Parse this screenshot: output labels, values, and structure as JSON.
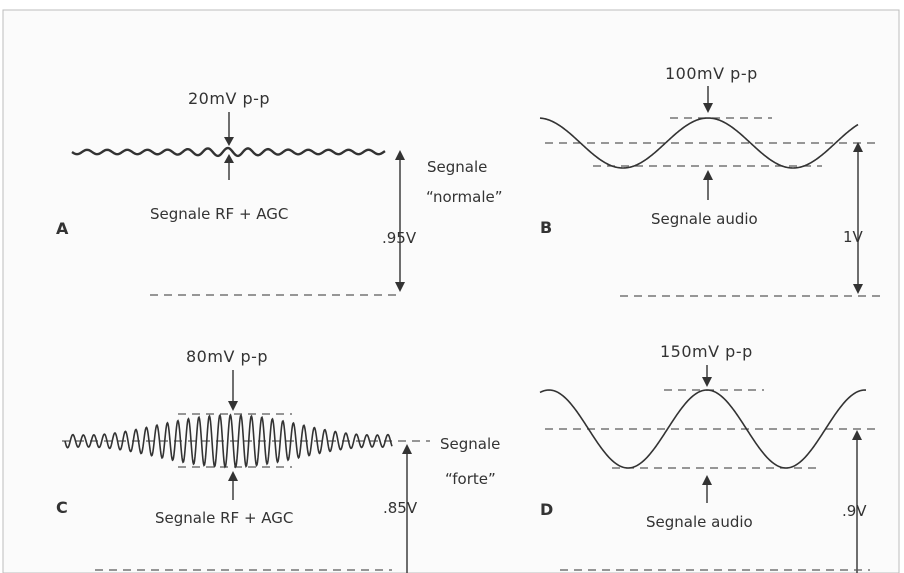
{
  "colors": {
    "background": "#ffffff",
    "panel": "#fbfbfb",
    "ink": "#333333",
    "border": "#bdbdbd"
  },
  "panels": {
    "A": {
      "letter": "A",
      "amplitude_label": "20mV p-p",
      "signal_label": "Segnale RF + AGC",
      "level_label": ".95V",
      "condition_label_line1": "Segnale",
      "condition_label_line2": "“normale”"
    },
    "B": {
      "letter": "B",
      "amplitude_label": "100mV p-p",
      "signal_label": "Segnale audio",
      "level_label": "1V"
    },
    "C": {
      "letter": "C",
      "amplitude_label": "80mV p-p",
      "signal_label": "Segnale RF + AGC",
      "level_label": ".85V",
      "condition_label_line1": "Segnale",
      "condition_label_line2": "“forte”"
    },
    "D": {
      "letter": "D",
      "amplitude_label": "150mV p-p",
      "signal_label": "Segnale audio",
      "level_label": ".9V"
    }
  }
}
